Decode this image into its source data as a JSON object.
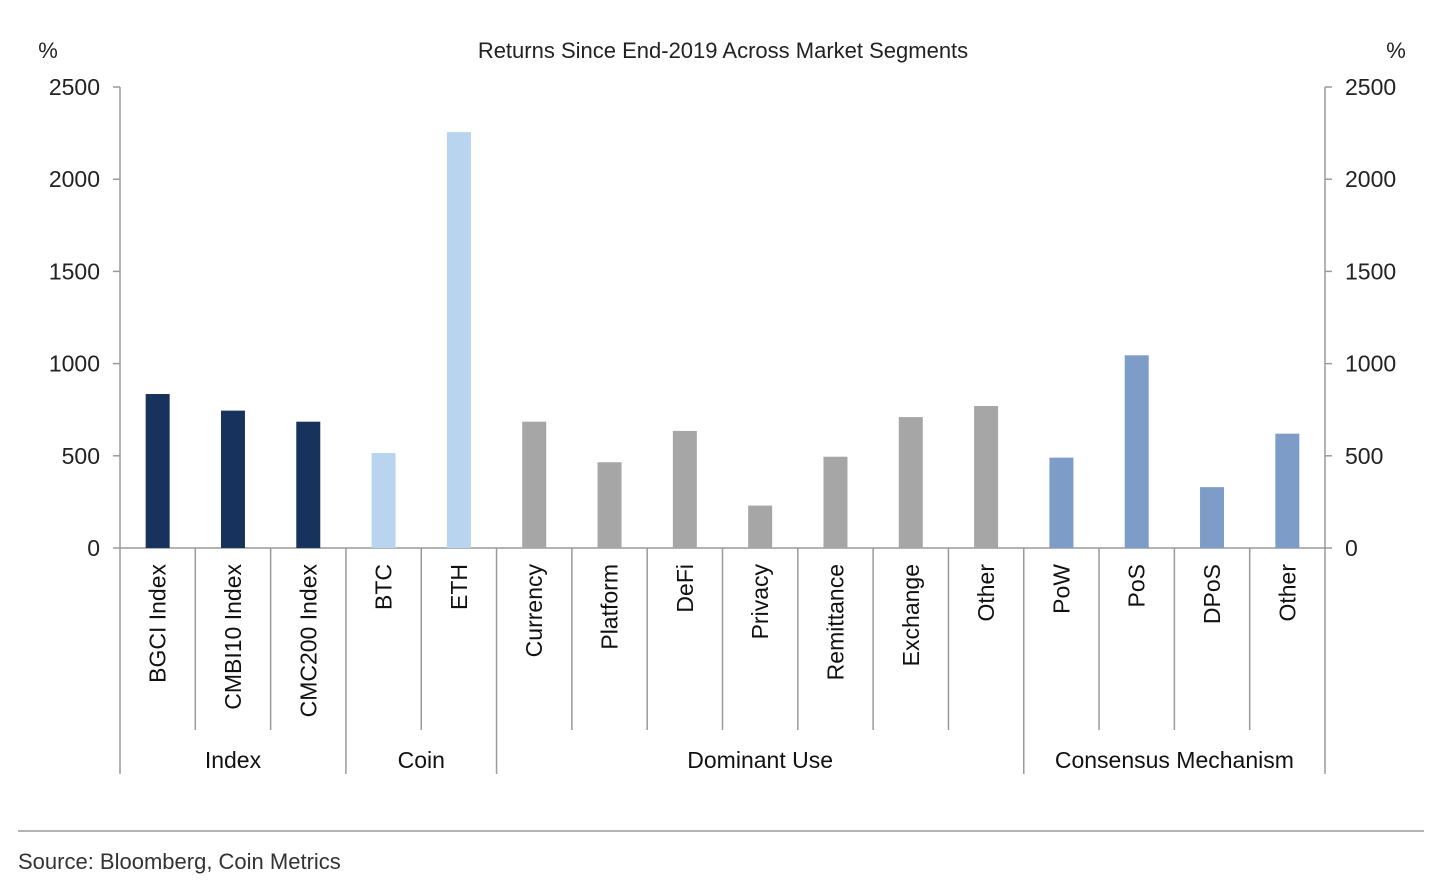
{
  "chart_data": {
    "type": "bar",
    "title": "Returns Since End-2019 Across Market Segments",
    "ylabel_left": "%",
    "ylabel_right": "%",
    "ylim": [
      0,
      2500
    ],
    "yticks": [
      0,
      500,
      1000,
      1500,
      2000,
      2500
    ],
    "ytick_labels": [
      "0",
      "500",
      "1000",
      "1500",
      "2000",
      "2500"
    ],
    "grid": false,
    "legend": "none",
    "groups": [
      {
        "label": "Index",
        "color": "#17325c",
        "categories": [
          "BGCI Index",
          "CMBI10 Index",
          "CMC200 Index"
        ],
        "values": [
          835,
          745,
          685
        ]
      },
      {
        "label": "Coin",
        "color": "#b8d4ee",
        "categories": [
          "BTC",
          "ETH"
        ],
        "values": [
          515,
          2255
        ]
      },
      {
        "label": "Dominant Use",
        "color": "#a6a6a6",
        "categories": [
          "Currency",
          "Platform",
          "DeFi",
          "Privacy",
          "Remittance",
          "Exchange",
          "Other"
        ],
        "values": [
          685,
          465,
          635,
          230,
          495,
          710,
          770
        ]
      },
      {
        "label": "Consensus Mechanism",
        "color": "#7d9cc8",
        "categories": [
          "PoW",
          "PoS",
          "DPoS",
          "Other"
        ],
        "values": [
          490,
          1045,
          330,
          620
        ]
      }
    ]
  },
  "source": "Source: Bloomberg, Coin Metrics"
}
